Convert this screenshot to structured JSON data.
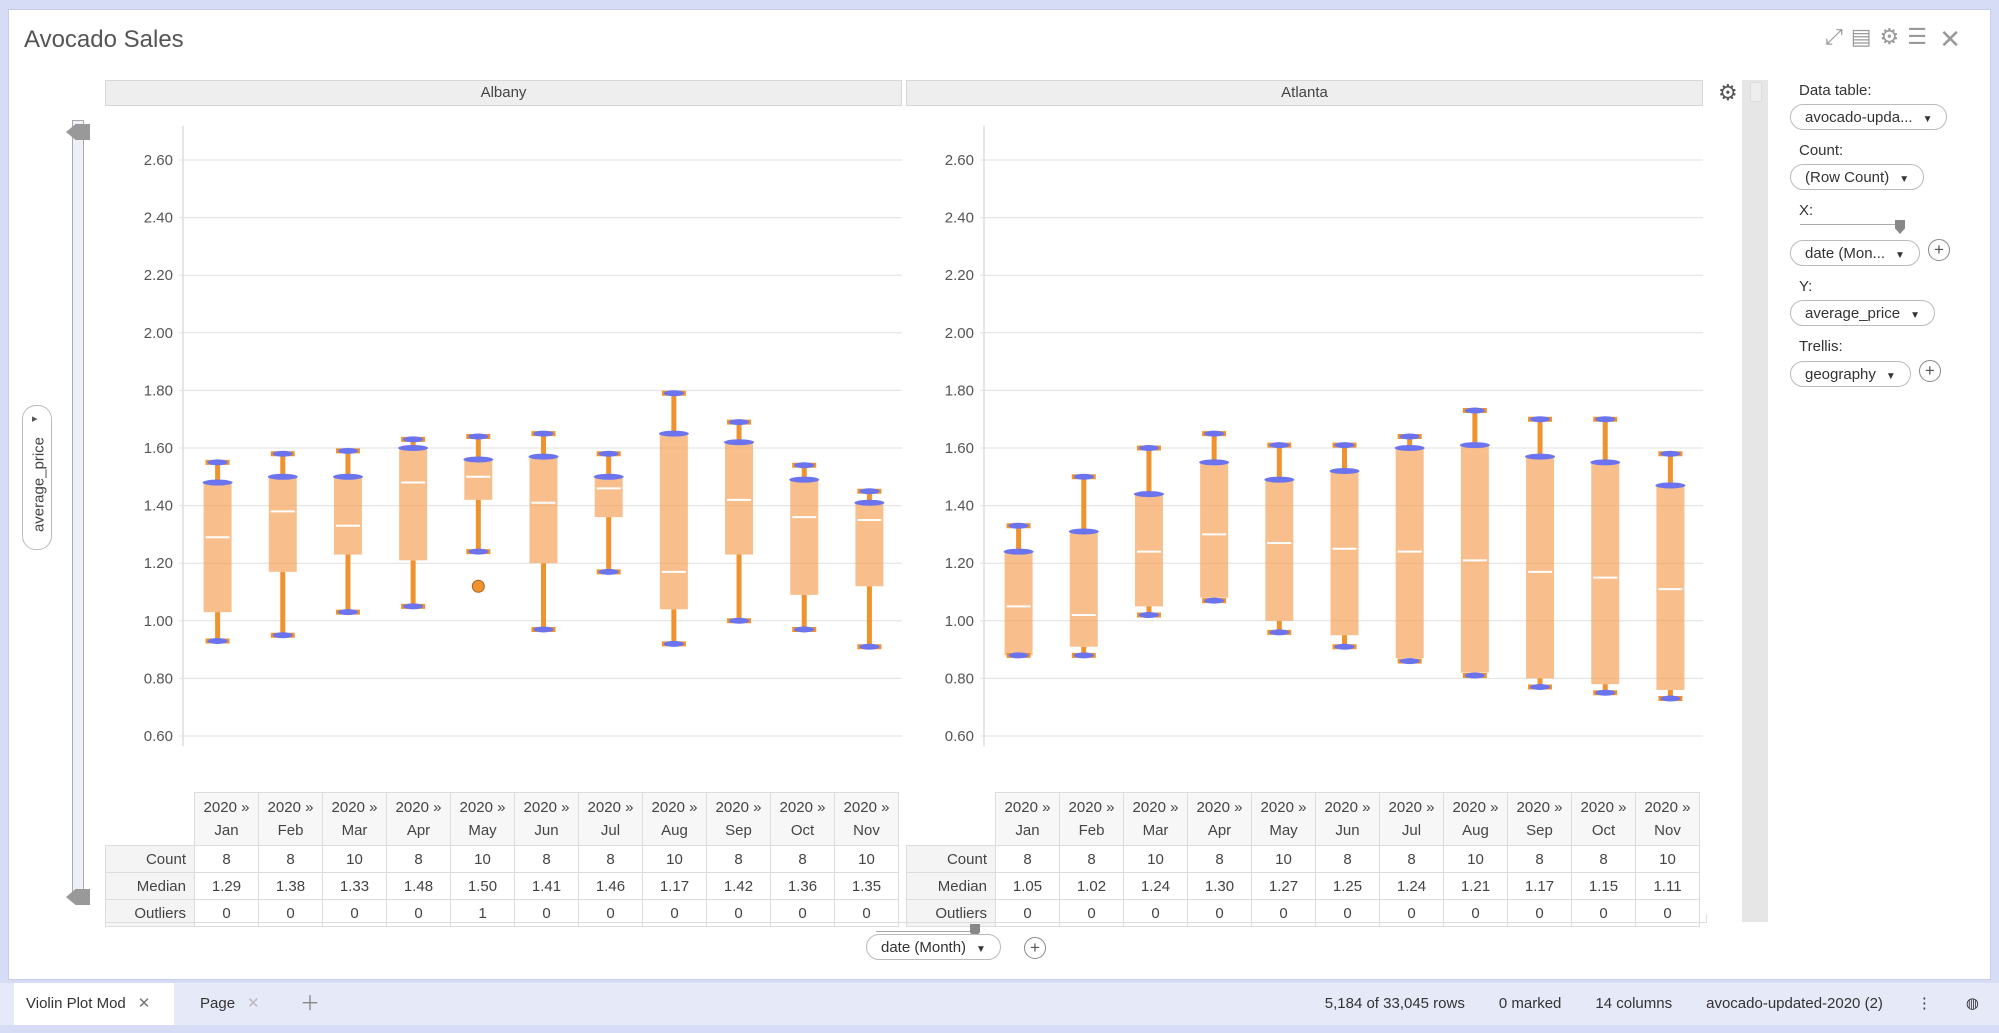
{
  "title": "Avocado Sales",
  "yaxis_selector": {
    "label": "average_price"
  },
  "panels": [
    {
      "name": "Albany"
    },
    {
      "name": "Atlanta"
    }
  ],
  "table": {
    "row_labels": [
      "Count",
      "Median",
      "Outliers"
    ]
  },
  "sidebar": {
    "data_table_label": "Data table:",
    "data_table_value": "avocado-upda...",
    "count_label": "Count:",
    "count_value": "(Row Count)",
    "x_label": "X:",
    "x_value": "date (Mon...",
    "y_label": "Y:",
    "y_value": "average_price",
    "trellis_label": "Trellis:",
    "trellis_value": "geography"
  },
  "x_selector": {
    "value": "date (Month)"
  },
  "status_bar": {
    "tabs": [
      {
        "label": "Violin Plot Mod"
      },
      {
        "label": "Page"
      }
    ],
    "rows": "5,184 of 33,045 rows",
    "marked": "0 marked",
    "columns": "14 columns",
    "table_name": "avocado-updated-2020 (2)"
  },
  "colors": {
    "box": "#f5a45d",
    "violin": "#6b74ee",
    "accent": "#f0932e"
  },
  "chart_data": [
    {
      "type": "violin",
      "title": "Albany",
      "x_label": "date (Month)",
      "y_label": "average_price",
      "ylim": [
        0.6,
        2.6
      ],
      "yticks": [
        "0.60",
        "0.80",
        "1.00",
        "1.20",
        "1.40",
        "1.60",
        "1.80",
        "2.00",
        "2.20",
        "2.40",
        "2.60"
      ],
      "categories": [
        "Jan",
        "Feb",
        "Mar",
        "Apr",
        "May",
        "Jun",
        "Jul",
        "Aug",
        "Sep",
        "Oct",
        "Nov"
      ],
      "category_prefix": "2020 »",
      "whisker_low": [
        0.93,
        0.95,
        1.03,
        1.05,
        1.24,
        0.97,
        1.17,
        0.92,
        1.0,
        0.97,
        0.91
      ],
      "whisker_high": [
        1.55,
        1.58,
        1.59,
        1.63,
        1.64,
        1.65,
        1.58,
        1.79,
        1.69,
        1.54,
        1.45
      ],
      "q1": [
        1.03,
        1.17,
        1.23,
        1.21,
        1.42,
        1.2,
        1.36,
        1.04,
        1.23,
        1.09,
        1.12
      ],
      "q3": [
        1.48,
        1.5,
        1.5,
        1.6,
        1.56,
        1.57,
        1.5,
        1.65,
        1.62,
        1.49,
        1.41
      ],
      "median": [
        1.29,
        1.38,
        1.33,
        1.48,
        1.5,
        1.41,
        1.46,
        1.17,
        1.42,
        1.36,
        1.35
      ],
      "outlier_points": [
        [],
        [],
        [],
        [],
        [
          1.12
        ],
        [],
        [],
        [],
        [],
        [],
        []
      ],
      "count": [
        8,
        8,
        10,
        8,
        10,
        8,
        8,
        10,
        8,
        8,
        10
      ],
      "median_label": [
        "1.29",
        "1.38",
        "1.33",
        "1.48",
        "1.50",
        "1.41",
        "1.46",
        "1.17",
        "1.42",
        "1.36",
        "1.35"
      ],
      "outliers": [
        0,
        0,
        0,
        0,
        1,
        0,
        0,
        0,
        0,
        0,
        0
      ]
    },
    {
      "type": "violin",
      "title": "Atlanta",
      "x_label": "date (Month)",
      "y_label": "average_price",
      "ylim": [
        0.6,
        2.6
      ],
      "yticks": [
        "0.60",
        "0.80",
        "1.00",
        "1.20",
        "1.40",
        "1.60",
        "1.80",
        "2.00",
        "2.20",
        "2.40",
        "2.60"
      ],
      "categories": [
        "Jan",
        "Feb",
        "Mar",
        "Apr",
        "May",
        "Jun",
        "Jul",
        "Aug",
        "Sep",
        "Oct",
        "Nov"
      ],
      "category_prefix": "2020 »",
      "whisker_low": [
        0.88,
        0.88,
        1.02,
        1.07,
        0.96,
        0.91,
        0.86,
        0.81,
        0.77,
        0.75,
        0.73
      ],
      "whisker_high": [
        1.33,
        1.5,
        1.6,
        1.65,
        1.61,
        1.61,
        1.64,
        1.73,
        1.7,
        1.7,
        1.58
      ],
      "q1": [
        0.88,
        0.91,
        1.05,
        1.08,
        1.0,
        0.95,
        0.87,
        0.82,
        0.8,
        0.78,
        0.76
      ],
      "q3": [
        1.24,
        1.31,
        1.44,
        1.55,
        1.49,
        1.52,
        1.6,
        1.61,
        1.57,
        1.55,
        1.47
      ],
      "median": [
        1.05,
        1.02,
        1.24,
        1.3,
        1.27,
        1.25,
        1.24,
        1.21,
        1.17,
        1.15,
        1.11
      ],
      "outlier_points": [
        [],
        [],
        [],
        [],
        [],
        [],
        [],
        [],
        [],
        [],
        []
      ],
      "count": [
        8,
        8,
        10,
        8,
        10,
        8,
        8,
        10,
        8,
        8,
        10
      ],
      "median_label": [
        "1.05",
        "1.02",
        "1.24",
        "1.30",
        "1.27",
        "1.25",
        "1.24",
        "1.21",
        "1.17",
        "1.15",
        "1.11"
      ],
      "outliers": [
        0,
        0,
        0,
        0,
        0,
        0,
        0,
        0,
        0,
        0,
        0
      ]
    }
  ]
}
